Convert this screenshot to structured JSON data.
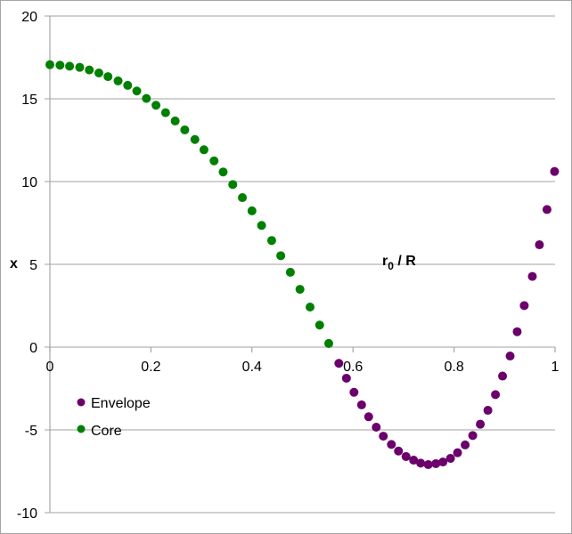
{
  "chart_data": {
    "type": "scatter",
    "title": "",
    "xlabel": "r0 / R",
    "xlabel_main": "r",
    "xlabel_sub": "0",
    "xlabel_rest": " / R",
    "ylabel": "x",
    "xlim": [
      0,
      1
    ],
    "ylim": [
      -10,
      20
    ],
    "x_ticks": [
      "0",
      "0.2",
      "0.4",
      "0.6",
      "0.8",
      "1"
    ],
    "x_tick_values": [
      0,
      0.2,
      0.4,
      0.6,
      0.8,
      1
    ],
    "y_ticks": [
      "20",
      "15",
      "10",
      "5",
      "0",
      "-5",
      "-10"
    ],
    "y_tick_values": [
      20,
      15,
      10,
      5,
      0,
      -5,
      -10
    ],
    "grid": "horizontal",
    "legend_position": "lower-left inside",
    "series": [
      {
        "name": "Envelope",
        "color": "#6b006b",
        "x": [
          0.572,
          0.587,
          0.602,
          0.617,
          0.631,
          0.646,
          0.66,
          0.676,
          0.69,
          0.705,
          0.72,
          0.734,
          0.749,
          0.764,
          0.778,
          0.793,
          0.807,
          0.822,
          0.837,
          0.852,
          0.867,
          0.882,
          0.896,
          0.911,
          0.925,
          0.939,
          0.955,
          0.969,
          0.984,
          0.999
        ],
        "y": [
          -0.98,
          -1.88,
          -2.73,
          -3.49,
          -4.21,
          -4.84,
          -5.38,
          -5.88,
          -6.28,
          -6.61,
          -6.83,
          -7.01,
          -7.1,
          -7.04,
          -6.94,
          -6.72,
          -6.38,
          -5.91,
          -5.34,
          -4.66,
          -3.82,
          -2.87,
          -1.75,
          -0.54,
          0.93,
          2.51,
          4.27,
          6.18,
          8.31,
          10.61
        ]
      },
      {
        "name": "Core",
        "color": "#008000",
        "x": [
          0.0,
          0.02,
          0.039,
          0.059,
          0.078,
          0.097,
          0.115,
          0.135,
          0.154,
          0.172,
          0.191,
          0.21,
          0.229,
          0.248,
          0.267,
          0.287,
          0.305,
          0.325,
          0.343,
          0.362,
          0.381,
          0.4,
          0.419,
          0.439,
          0.457,
          0.476,
          0.495,
          0.515,
          0.534,
          0.552
        ],
        "y": [
          17.06,
          17.03,
          16.97,
          16.9,
          16.74,
          16.56,
          16.34,
          16.08,
          15.81,
          15.47,
          15.02,
          14.61,
          14.16,
          13.66,
          13.12,
          12.54,
          11.92,
          11.25,
          10.58,
          9.82,
          9.03,
          8.23,
          7.35,
          6.44,
          5.52,
          4.52,
          3.49,
          2.42,
          1.33,
          0.22
        ]
      }
    ]
  },
  "legend": {
    "items": [
      {
        "label": "Envelope",
        "color": "#6b006b"
      },
      {
        "label": "Core",
        "color": "#008000"
      }
    ]
  },
  "colors": {
    "gridline": "#b3b3b3",
    "axis": "#a6a6a6",
    "border": "#a6a6a6"
  }
}
